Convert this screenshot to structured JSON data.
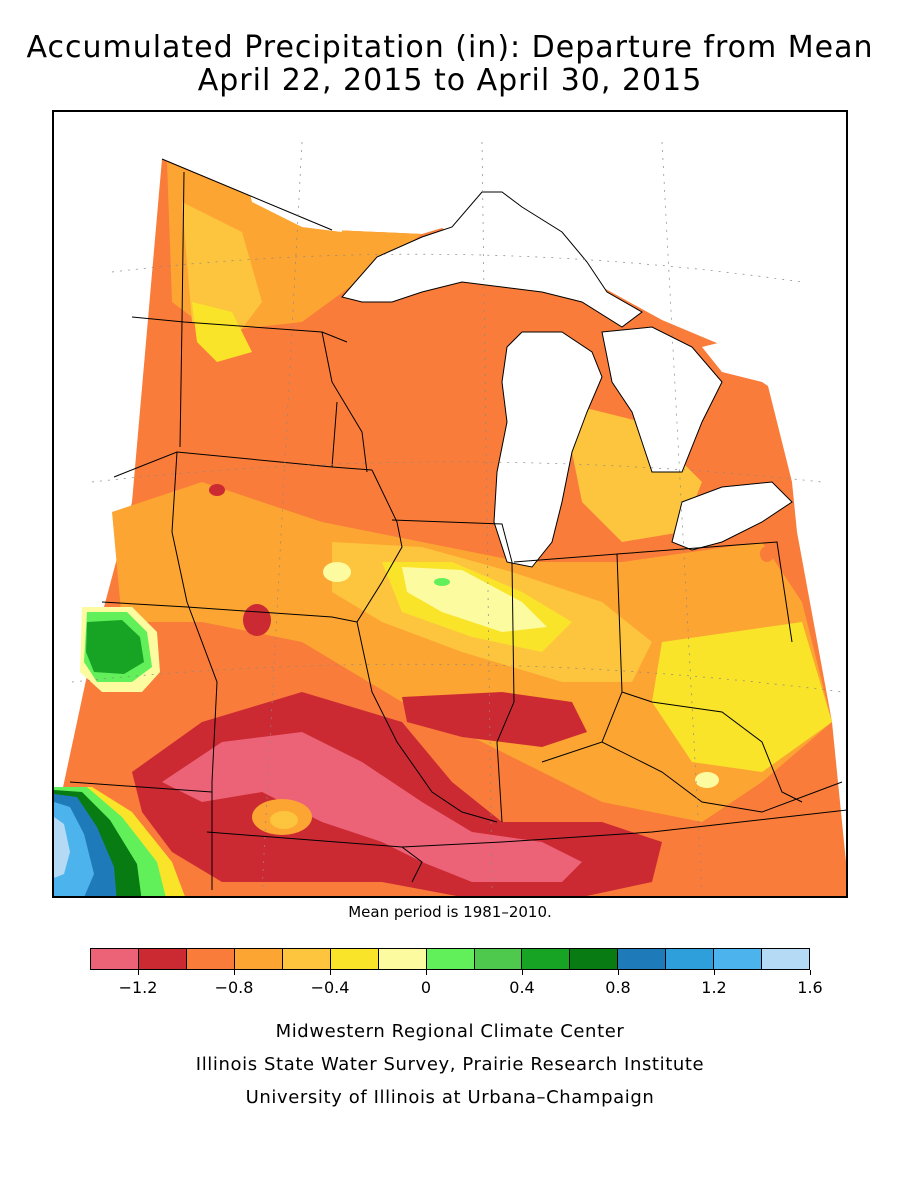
{
  "title": {
    "line1": "Accumulated Precipitation (in): Departure from Mean",
    "line2": "April 22, 2015 to April 30, 2015"
  },
  "note": "Mean period is 1981–2010.",
  "colorbar": {
    "colors": [
      "#ec6377",
      "#cc2a33",
      "#f97c3a",
      "#fca532",
      "#fdc43e",
      "#f9e42a",
      "#fdfba0",
      "#61f05a",
      "#4fc84e",
      "#17a324",
      "#087b12",
      "#1f7ab9",
      "#2f9fdc",
      "#4db3ed",
      "#b4daf6"
    ],
    "tick_labels": [
      "−1.2",
      "−0.8",
      "−0.4",
      "0",
      "0.4",
      "0.8",
      "1.2",
      "1.6"
    ]
  },
  "credits": {
    "line1": "Midwestern Regional Climate Center",
    "line2": "Illinois State Water Survey, Prairie Research Institute",
    "line3": "University of Illinois at Urbana–Champaign"
  }
}
